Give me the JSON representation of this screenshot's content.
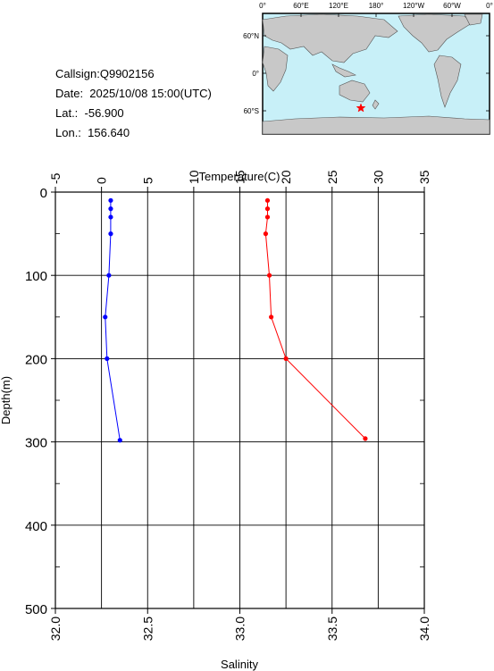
{
  "info": {
    "callsign": "Callsign:Q9902156",
    "date": "Date:  2025/10/08 15:00(UTC)",
    "lat": "Lat.:  -56.900",
    "lon": "Lon.:  156.640"
  },
  "map": {
    "top_labels": [
      "0°",
      "60°E",
      "120°E",
      "180°",
      "120°W",
      "60°W",
      "0°"
    ],
    "left_labels": [
      "60°N",
      "0°",
      "60°S"
    ],
    "ocean_color": "#c8f0f8",
    "land_color": "#c8c8c8",
    "marker": "red-star"
  },
  "chart_data": {
    "type": "line",
    "ylabel": "Depth(m)",
    "ylim": [
      0,
      500
    ],
    "y_ticks": [
      "0",
      "100",
      "200",
      "300",
      "400",
      "500"
    ],
    "x_top": {
      "label": "Temperature(C)",
      "lim": [
        -5,
        35
      ],
      "ticks": [
        "-5",
        "0",
        "5",
        "10",
        "15",
        "20",
        "25",
        "30",
        "35"
      ]
    },
    "x_bottom": {
      "label": "Salinity",
      "lim": [
        32.0,
        34.0
      ],
      "ticks": [
        "32.0",
        "32.5",
        "33.0",
        "33.5",
        "34.0"
      ]
    },
    "series": [
      {
        "axis": "bottom",
        "color": "#0000ff",
        "points": [
          [
            32.3,
            10
          ],
          [
            32.3,
            20
          ],
          [
            32.3,
            30
          ],
          [
            32.3,
            50
          ],
          [
            32.29,
            100
          ],
          [
            32.27,
            150
          ],
          [
            32.28,
            200
          ],
          [
            32.35,
            298
          ]
        ]
      },
      {
        "axis": "bottom",
        "color": "#ff0000",
        "points": [
          [
            33.15,
            10
          ],
          [
            33.15,
            20
          ],
          [
            33.15,
            30
          ],
          [
            33.14,
            50
          ],
          [
            33.16,
            100
          ],
          [
            33.17,
            150
          ],
          [
            33.25,
            200
          ],
          [
            33.68,
            296
          ]
        ]
      }
    ]
  }
}
